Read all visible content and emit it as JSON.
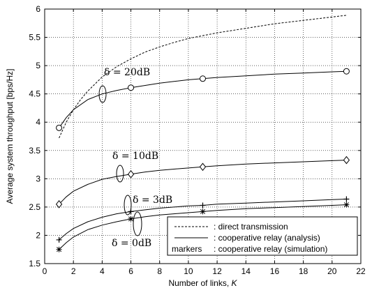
{
  "chart_data": {
    "type": "line",
    "xlabel": "Number of links, ",
    "xlabel_var": "K",
    "ylabel": "Average system throughput [bps/Hz]",
    "xlim": [
      0,
      22
    ],
    "ylim": [
      1.5,
      6
    ],
    "xticks": [
      0,
      2,
      4,
      6,
      8,
      10,
      12,
      14,
      16,
      18,
      20,
      22
    ],
    "yticks": [
      1.5,
      2,
      2.5,
      3,
      3.5,
      4,
      4.5,
      5,
      5.5,
      6
    ],
    "grid": true,
    "legend_position": "bottom-right",
    "legend": [
      {
        "style": "dashed",
        "label": ": direct transmission"
      },
      {
        "style": "solid",
        "label": ": cooperative relay (analysis)"
      },
      {
        "style": "markers",
        "key": "markers",
        "label": ": cooperative relay (simulation)"
      }
    ],
    "series": [
      {
        "style": "dashed",
        "x": [
          1,
          1.5,
          2,
          2.5,
          3,
          4,
          5,
          6,
          7,
          8,
          9,
          10,
          12,
          14,
          16,
          18,
          20,
          21
        ],
        "y": [
          3.72,
          4.0,
          4.22,
          4.4,
          4.55,
          4.8,
          4.98,
          5.12,
          5.24,
          5.33,
          5.41,
          5.48,
          5.58,
          5.66,
          5.74,
          5.8,
          5.86,
          5.89
        ]
      },
      {
        "style": "solid",
        "marker": "circle",
        "x": [
          1,
          1.5,
          2,
          3,
          4,
          5,
          6,
          7,
          8,
          9,
          10,
          11,
          12,
          14,
          16,
          18,
          20,
          21
        ],
        "y": [
          3.9,
          4.08,
          4.22,
          4.4,
          4.5,
          4.56,
          4.61,
          4.65,
          4.69,
          4.72,
          4.75,
          4.77,
          4.79,
          4.82,
          4.85,
          4.87,
          4.89,
          4.9
        ],
        "marker_x": [
          1,
          6,
          11,
          21
        ],
        "marker_y": [
          3.9,
          4.61,
          4.77,
          4.9
        ],
        "annotation": "δ = 20dB"
      },
      {
        "style": "solid",
        "marker": "diamond",
        "x": [
          1,
          1.5,
          2,
          3,
          4,
          5,
          6,
          7,
          8,
          9,
          10,
          11,
          12,
          14,
          16,
          18,
          20,
          21
        ],
        "y": [
          2.55,
          2.68,
          2.78,
          2.9,
          2.99,
          3.04,
          3.08,
          3.12,
          3.15,
          3.17,
          3.19,
          3.21,
          3.23,
          3.26,
          3.28,
          3.3,
          3.32,
          3.33
        ],
        "marker_x": [
          1,
          6,
          11,
          21
        ],
        "marker_y": [
          2.55,
          3.08,
          3.21,
          3.33
        ],
        "annotation": "δ = 10dB"
      },
      {
        "style": "solid",
        "marker": "plus",
        "x": [
          1,
          1.5,
          2,
          3,
          4,
          5,
          6,
          7,
          8,
          9,
          10,
          11,
          12,
          14,
          16,
          18,
          20,
          21
        ],
        "y": [
          1.92,
          2.03,
          2.12,
          2.24,
          2.32,
          2.38,
          2.42,
          2.45,
          2.48,
          2.5,
          2.52,
          2.53,
          2.55,
          2.57,
          2.59,
          2.61,
          2.63,
          2.64
        ],
        "marker_x": [
          1,
          6,
          11,
          21
        ],
        "marker_y": [
          1.92,
          2.42,
          2.53,
          2.64
        ],
        "annotation": "δ = 3dB"
      },
      {
        "style": "solid",
        "marker": "star",
        "x": [
          1,
          1.5,
          2,
          3,
          4,
          5,
          6,
          7,
          8,
          9,
          10,
          11,
          12,
          14,
          16,
          18,
          20,
          21
        ],
        "y": [
          1.75,
          1.87,
          1.97,
          2.1,
          2.18,
          2.24,
          2.29,
          2.33,
          2.36,
          2.38,
          2.4,
          2.42,
          2.44,
          2.47,
          2.49,
          2.51,
          2.53,
          2.54
        ],
        "marker_x": [
          1,
          6,
          11,
          21
        ],
        "marker_y": [
          1.75,
          2.29,
          2.42,
          2.54
        ],
        "annotation": "δ = 0dB"
      }
    ]
  }
}
